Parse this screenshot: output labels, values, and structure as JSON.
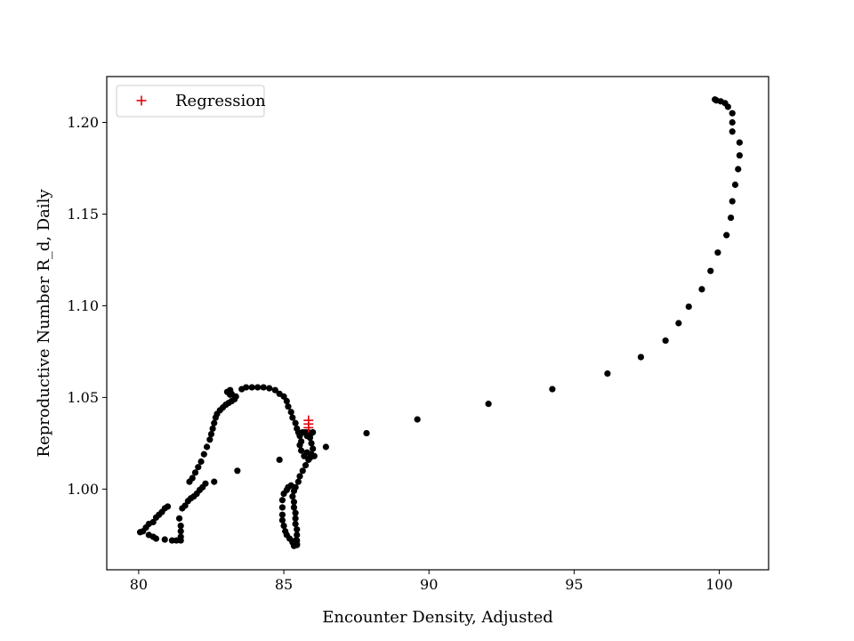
{
  "chart_data": {
    "type": "scatter",
    "title": "",
    "xlabel": "Encounter Density, Adjusted",
    "ylabel": "Reproductive Number R_d, Daily",
    "xlim": [
      78.9,
      101.7
    ],
    "ylim": [
      0.956,
      1.225
    ],
    "x_ticks": [
      80,
      85,
      90,
      95,
      100
    ],
    "x_tick_labels": [
      "80",
      "85",
      "90",
      "95",
      "100"
    ],
    "y_ticks": [
      1.0,
      1.05,
      1.1,
      1.15,
      1.2
    ],
    "y_tick_labels": [
      "1.00",
      "1.05",
      "1.10",
      "1.15",
      "1.20"
    ],
    "grid": false,
    "legend": {
      "position": "top-left",
      "entries": [
        {
          "label": "Regression",
          "marker": "+",
          "color": "#e8000b"
        }
      ]
    },
    "colors": {
      "points": "#000000",
      "regression": "#e8000b"
    },
    "series": [
      {
        "marker": "circle",
        "color": "#000000",
        "points": [
          [
            80.05,
            0.9765
          ],
          [
            80.25,
            0.979
          ],
          [
            80.35,
            0.981
          ],
          [
            80.5,
            0.982
          ],
          [
            80.6,
            0.9845
          ],
          [
            80.7,
            0.986
          ],
          [
            80.8,
            0.9875
          ],
          [
            80.9,
            0.9895
          ],
          [
            81.0,
            0.9905
          ],
          [
            80.15,
            0.977
          ],
          [
            80.35,
            0.975
          ],
          [
            80.5,
            0.974
          ],
          [
            80.6,
            0.973
          ],
          [
            80.9,
            0.9725
          ],
          [
            81.15,
            0.972
          ],
          [
            81.3,
            0.972
          ],
          [
            81.45,
            0.972
          ],
          [
            81.45,
            0.974
          ],
          [
            81.45,
            0.977
          ],
          [
            81.45,
            0.98
          ],
          [
            81.4,
            0.984
          ],
          [
            81.5,
            0.9895
          ],
          [
            81.6,
            0.991
          ],
          [
            81.7,
            0.9935
          ],
          [
            81.8,
            0.995
          ],
          [
            81.9,
            0.996
          ],
          [
            82.0,
            0.9975
          ],
          [
            82.1,
            0.9995
          ],
          [
            82.2,
            1.001
          ],
          [
            82.3,
            1.003
          ],
          [
            82.6,
            1.004
          ],
          [
            83.4,
            1.01
          ],
          [
            81.75,
            1.004
          ],
          [
            81.85,
            1.006
          ],
          [
            81.95,
            1.009
          ],
          [
            82.05,
            1.012
          ],
          [
            82.15,
            1.015
          ],
          [
            82.25,
            1.019
          ],
          [
            82.35,
            1.023
          ],
          [
            82.45,
            1.027
          ],
          [
            82.5,
            1.03
          ],
          [
            82.55,
            1.033
          ],
          [
            82.6,
            1.036
          ],
          [
            82.65,
            1.039
          ],
          [
            82.7,
            1.041
          ],
          [
            82.8,
            1.043
          ],
          [
            82.9,
            1.0445
          ],
          [
            83.0,
            1.046
          ],
          [
            83.1,
            1.047
          ],
          [
            83.2,
            1.048
          ],
          [
            83.3,
            1.049
          ],
          [
            83.35,
            1.0505
          ],
          [
            83.15,
            1.0515
          ],
          [
            83.05,
            1.053
          ],
          [
            83.15,
            1.054
          ],
          [
            83.2,
            1.052
          ],
          [
            83.55,
            1.0545
          ],
          [
            83.7,
            1.0555
          ],
          [
            83.9,
            1.0555
          ],
          [
            84.1,
            1.0555
          ],
          [
            84.3,
            1.0555
          ],
          [
            84.5,
            1.055
          ],
          [
            84.7,
            1.054
          ],
          [
            84.85,
            1.052
          ],
          [
            85.0,
            1.0505
          ],
          [
            85.1,
            1.048
          ],
          [
            85.15,
            1.045
          ],
          [
            85.25,
            1.042
          ],
          [
            85.3,
            1.039
          ],
          [
            85.4,
            1.036
          ],
          [
            85.45,
            1.033
          ],
          [
            85.5,
            1.031
          ],
          [
            85.55,
            1.029
          ],
          [
            85.65,
            1.031
          ],
          [
            85.75,
            1.031
          ],
          [
            85.85,
            1.031
          ],
          [
            85.95,
            1.0305
          ],
          [
            86.0,
            1.031
          ],
          [
            85.8,
            1.029
          ],
          [
            85.9,
            1.028
          ],
          [
            85.95,
            1.025
          ],
          [
            86.0,
            1.022
          ],
          [
            85.95,
            1.019
          ],
          [
            85.85,
            1.016
          ],
          [
            85.75,
            1.013
          ],
          [
            85.65,
            1.01
          ],
          [
            85.55,
            1.007
          ],
          [
            85.5,
            1.004
          ],
          [
            85.4,
            1.001
          ],
          [
            85.35,
            0.999
          ],
          [
            85.3,
            0.996
          ],
          [
            85.35,
            0.993
          ],
          [
            85.35,
            0.99
          ],
          [
            85.4,
            0.987
          ],
          [
            85.4,
            0.984
          ],
          [
            85.4,
            0.981
          ],
          [
            85.45,
            0.978
          ],
          [
            85.45,
            0.975
          ],
          [
            85.45,
            0.972
          ],
          [
            85.45,
            0.9695
          ],
          [
            85.0,
            0.9975
          ],
          [
            84.95,
            0.994
          ],
          [
            84.95,
            0.99
          ],
          [
            84.95,
            0.986
          ],
          [
            84.95,
            0.983
          ],
          [
            85.0,
            0.98
          ],
          [
            85.05,
            0.977
          ],
          [
            85.1,
            0.975
          ],
          [
            85.2,
            0.973
          ],
          [
            85.3,
            0.971
          ],
          [
            85.35,
            0.969
          ],
          [
            85.45,
            0.97
          ],
          [
            85.4,
            0.972
          ],
          [
            85.1,
            0.9995
          ],
          [
            85.15,
            1.001
          ],
          [
            85.25,
            1.002
          ],
          [
            85.6,
            1.021
          ],
          [
            85.7,
            1.018
          ],
          [
            85.8,
            1.02
          ],
          [
            85.9,
            1.017
          ],
          [
            86.05,
            1.018
          ],
          [
            85.6,
            1.026
          ],
          [
            85.55,
            1.024
          ],
          [
            84.85,
            1.016
          ],
          [
            86.45,
            1.023
          ],
          [
            87.85,
            1.0305
          ],
          [
            89.6,
            1.038
          ],
          [
            92.05,
            1.0465
          ],
          [
            94.25,
            1.0545
          ],
          [
            96.15,
            1.063
          ],
          [
            97.3,
            1.072
          ],
          [
            98.15,
            1.081
          ],
          [
            98.6,
            1.0905
          ],
          [
            98.95,
            1.0995
          ],
          [
            99.4,
            1.109
          ],
          [
            99.7,
            1.119
          ],
          [
            99.95,
            1.129
          ],
          [
            100.25,
            1.1385
          ],
          [
            100.4,
            1.148
          ],
          [
            100.45,
            1.157
          ],
          [
            100.55,
            1.166
          ],
          [
            100.65,
            1.1745
          ],
          [
            100.7,
            1.182
          ],
          [
            100.7,
            1.189
          ],
          [
            100.45,
            1.195
          ],
          [
            100.45,
            1.2
          ],
          [
            100.45,
            1.205
          ],
          [
            100.3,
            1.2085
          ],
          [
            100.2,
            1.2105
          ],
          [
            100.05,
            1.2115
          ],
          [
            99.9,
            1.212
          ],
          [
            99.85,
            1.2125
          ]
        ]
      },
      {
        "name": "Regression",
        "marker": "plus",
        "color": "#e8000b",
        "points": [
          [
            85.85,
            1.0375
          ],
          [
            85.85,
            1.0355
          ],
          [
            85.85,
            1.0335
          ]
        ]
      }
    ]
  }
}
